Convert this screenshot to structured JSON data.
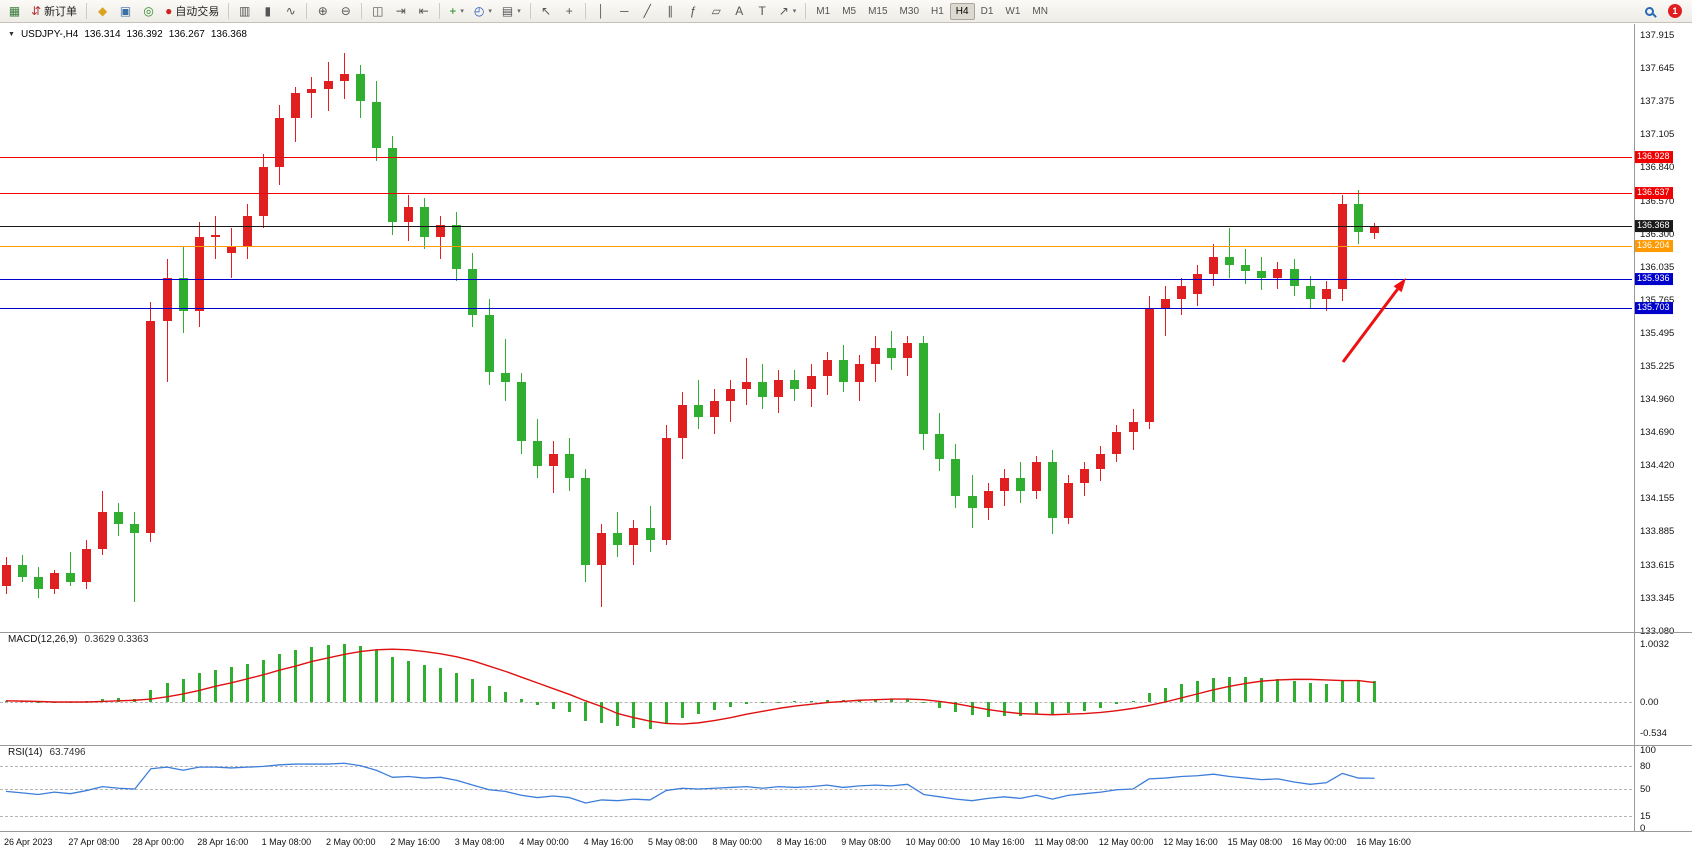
{
  "toolbar": {
    "groups": [
      [
        {
          "name": "new-chart",
          "glyph": "▦",
          "color": "#3a7a3a"
        },
        {
          "name": "new-order",
          "glyph": "⇵",
          "color": "#b03030",
          "label": "新订单"
        }
      ],
      [
        {
          "name": "metaeditor",
          "glyph": "◆",
          "color": "#d9a520"
        },
        {
          "name": "terminal",
          "glyph": "▣",
          "color": "#3a6ea5"
        },
        {
          "name": "strategy-tester",
          "glyph": "◎",
          "color": "#2e8b2e"
        },
        {
          "name": "auto-trading",
          "glyph": "●",
          "color": "#cc2222",
          "label": "自动交易"
        }
      ],
      [
        {
          "name": "bar-chart",
          "glyph": "▥"
        },
        {
          "name": "candlestick-chart",
          "glyph": "▮"
        },
        {
          "name": "line-chart",
          "glyph": "∿"
        }
      ],
      [
        {
          "name": "zoom-in",
          "glyph": "⊕"
        },
        {
          "name": "zoom-out",
          "glyph": "⊖"
        }
      ],
      [
        {
          "name": "tile-windows",
          "glyph": "◫"
        },
        {
          "name": "auto-scroll",
          "glyph": "⇥"
        },
        {
          "name": "chart-shift",
          "glyph": "⇤"
        }
      ],
      [
        {
          "name": "indicators",
          "glyph": "+",
          "color": "#1a8a1a",
          "dropdown": true
        },
        {
          "name": "periods",
          "glyph": "◴",
          "color": "#2255bb",
          "dropdown": true
        },
        {
          "name": "templates",
          "glyph": "▤",
          "dropdown": true
        }
      ],
      [
        {
          "name": "cursor",
          "glyph": "↖"
        },
        {
          "name": "crosshair",
          "glyph": "+"
        }
      ],
      [
        {
          "name": "vertical-line",
          "glyph": "│"
        },
        {
          "name": "horizontal-line",
          "glyph": "─"
        },
        {
          "name": "trendline",
          "glyph": "╱"
        },
        {
          "name": "equidistant-channel",
          "glyph": "∥"
        },
        {
          "name": "fibonacci",
          "glyph": "ƒ"
        },
        {
          "name": "shapes",
          "glyph": "▱"
        },
        {
          "name": "text",
          "glyph": "A"
        },
        {
          "name": "text-label",
          "glyph": "T"
        },
        {
          "name": "arrows",
          "glyph": "↗",
          "dropdown": true
        }
      ]
    ],
    "timeframes": {
      "options": [
        "M1",
        "M5",
        "M15",
        "M30",
        "H1",
        "H4",
        "D1",
        "W1",
        "MN"
      ],
      "active": "H4"
    },
    "right": {
      "badge_count": "1"
    }
  },
  "chart": {
    "collapse_icon": "▼",
    "symbol_period": "USDJPY-,H4",
    "ohlc": {
      "open": "136.314",
      "high": "136.392",
      "low": "136.267",
      "close": "136.368"
    }
  },
  "macd_panel": {
    "label": "MACD(12,26,9)",
    "values": "0.3629 0.3363",
    "scale_labels": [
      "1.0032",
      "0.00",
      "-0.534"
    ]
  },
  "rsi_panel": {
    "label": "RSI(14)",
    "value": "63.7496",
    "scale_labels": [
      "100",
      "80",
      "50",
      "15",
      "0"
    ]
  },
  "chart_data": {
    "type": "candlestick",
    "symbol": "USDJPY-",
    "timeframe": "H4",
    "up_color": "#e02020",
    "down_color": "#2fae2f",
    "price_axis_labels": [
      "137.915",
      "137.645",
      "137.375",
      "137.105",
      "136.840",
      "136.570",
      "136.300",
      "136.035",
      "135.765",
      "135.495",
      "135.225",
      "134.960",
      "134.690",
      "134.420",
      "134.155",
      "133.885",
      "133.615",
      "133.345",
      "133.080"
    ],
    "time_axis_labels": [
      "26 Apr 2023",
      "27 Apr 08:00",
      "28 Apr 00:00",
      "28 Apr 16:00",
      "1 May 08:00",
      "2 May 00:00",
      "2 May 16:00",
      "3 May 08:00",
      "4 May 00:00",
      "4 May 16:00",
      "5 May 08:00",
      "8 May 00:00",
      "8 May 16:00",
      "9 May 08:00",
      "10 May 00:00",
      "10 May 16:00",
      "11 May 08:00",
      "12 May 00:00",
      "12 May 16:00",
      "15 May 08:00",
      "16 May 00:00",
      "16 May 16:00"
    ],
    "candles_ohlc": [
      [
        133.45,
        133.68,
        133.38,
        133.62
      ],
      [
        133.62,
        133.7,
        133.48,
        133.52
      ],
      [
        133.52,
        133.6,
        133.35,
        133.42
      ],
      [
        133.42,
        133.58,
        133.38,
        133.55
      ],
      [
        133.55,
        133.72,
        133.45,
        133.48
      ],
      [
        133.48,
        133.82,
        133.42,
        133.75
      ],
      [
        133.75,
        134.22,
        133.7,
        134.05
      ],
      [
        134.05,
        134.12,
        133.85,
        133.95
      ],
      [
        133.95,
        134.05,
        133.32,
        133.88
      ],
      [
        133.88,
        135.75,
        133.8,
        135.6
      ],
      [
        135.6,
        136.1,
        135.1,
        135.95
      ],
      [
        135.95,
        136.2,
        135.5,
        135.68
      ],
      [
        135.68,
        136.4,
        135.55,
        136.28
      ],
      [
        136.28,
        136.45,
        136.1,
        136.3
      ],
      [
        136.15,
        136.35,
        135.95,
        136.2
      ],
      [
        136.2,
        136.55,
        136.1,
        136.45
      ],
      [
        136.45,
        136.95,
        136.35,
        136.85
      ],
      [
        136.85,
        137.35,
        136.7,
        137.25
      ],
      [
        137.25,
        137.5,
        137.05,
        137.45
      ],
      [
        137.45,
        137.58,
        137.25,
        137.48
      ],
      [
        137.48,
        137.7,
        137.3,
        137.55
      ],
      [
        137.55,
        137.77,
        137.4,
        137.6
      ],
      [
        137.6,
        137.68,
        137.25,
        137.38
      ],
      [
        137.38,
        137.55,
        136.9,
        137.0
      ],
      [
        137.0,
        137.1,
        136.3,
        136.4
      ],
      [
        136.4,
        136.62,
        136.25,
        136.52
      ],
      [
        136.52,
        136.6,
        136.18,
        136.28
      ],
      [
        136.28,
        136.45,
        136.1,
        136.38
      ],
      [
        136.38,
        136.48,
        135.92,
        136.02
      ],
      [
        136.02,
        136.15,
        135.55,
        135.65
      ],
      [
        135.65,
        135.78,
        135.08,
        135.18
      ],
      [
        135.18,
        135.45,
        134.95,
        135.1
      ],
      [
        135.1,
        135.18,
        134.52,
        134.62
      ],
      [
        134.62,
        134.8,
        134.32,
        134.42
      ],
      [
        134.42,
        134.62,
        134.2,
        134.52
      ],
      [
        134.52,
        134.65,
        134.22,
        134.32
      ],
      [
        134.32,
        134.4,
        133.48,
        133.62
      ],
      [
        133.62,
        133.95,
        133.28,
        133.88
      ],
      [
        133.88,
        134.05,
        133.68,
        133.78
      ],
      [
        133.78,
        133.98,
        133.62,
        133.92
      ],
      [
        133.92,
        134.1,
        133.72,
        133.82
      ],
      [
        133.82,
        134.75,
        133.78,
        134.65
      ],
      [
        134.65,
        135.02,
        134.48,
        134.92
      ],
      [
        134.92,
        135.12,
        134.72,
        134.82
      ],
      [
        134.82,
        135.05,
        134.68,
        134.95
      ],
      [
        134.95,
        135.12,
        134.78,
        135.05
      ],
      [
        135.05,
        135.3,
        134.92,
        135.1
      ],
      [
        135.1,
        135.25,
        134.88,
        134.98
      ],
      [
        134.98,
        135.2,
        134.85,
        135.12
      ],
      [
        135.12,
        135.2,
        134.95,
        135.05
      ],
      [
        135.05,
        135.25,
        134.9,
        135.15
      ],
      [
        135.15,
        135.35,
        135.0,
        135.28
      ],
      [
        135.28,
        135.4,
        135.02,
        135.1
      ],
      [
        135.1,
        135.32,
        134.95,
        135.25
      ],
      [
        135.25,
        135.48,
        135.1,
        135.38
      ],
      [
        135.38,
        135.52,
        135.2,
        135.3
      ],
      [
        135.3,
        135.48,
        135.15,
        135.42
      ],
      [
        135.42,
        135.48,
        134.55,
        134.68
      ],
      [
        134.68,
        134.85,
        134.38,
        134.48
      ],
      [
        134.48,
        134.6,
        134.08,
        134.18
      ],
      [
        134.18,
        134.35,
        133.92,
        134.08
      ],
      [
        134.08,
        134.28,
        133.98,
        134.22
      ],
      [
        134.22,
        134.4,
        134.1,
        134.32
      ],
      [
        134.32,
        134.45,
        134.12,
        134.22
      ],
      [
        134.22,
        134.5,
        134.15,
        134.45
      ],
      [
        134.45,
        134.55,
        133.87,
        134.0
      ],
      [
        134.0,
        134.35,
        133.95,
        134.28
      ],
      [
        134.28,
        134.45,
        134.18,
        134.4
      ],
      [
        134.4,
        134.58,
        134.3,
        134.52
      ],
      [
        134.52,
        134.75,
        134.45,
        134.7
      ],
      [
        134.7,
        134.88,
        134.55,
        134.78
      ],
      [
        134.78,
        135.8,
        134.72,
        135.7
      ],
      [
        135.7,
        135.88,
        135.48,
        135.78
      ],
      [
        135.78,
        135.95,
        135.65,
        135.88
      ],
      [
        135.82,
        136.05,
        135.72,
        135.98
      ],
      [
        135.98,
        136.22,
        135.88,
        136.12
      ],
      [
        136.12,
        136.35,
        135.95,
        136.05
      ],
      [
        136.05,
        136.18,
        135.9,
        136.0
      ],
      [
        136.0,
        136.12,
        135.85,
        135.95
      ],
      [
        135.95,
        136.08,
        135.86,
        136.02
      ],
      [
        136.02,
        136.1,
        135.8,
        135.88
      ],
      [
        135.88,
        135.96,
        135.7,
        135.78
      ],
      [
        135.78,
        135.92,
        135.68,
        135.86
      ],
      [
        135.86,
        136.62,
        135.76,
        136.55
      ],
      [
        136.55,
        136.66,
        136.22,
        136.32
      ],
      [
        136.314,
        136.392,
        136.267,
        136.368
      ]
    ],
    "horizontal_lines": [
      {
        "price": "136.928",
        "value": 136.928,
        "color": "#f00000"
      },
      {
        "price": "136.637",
        "value": 136.637,
        "color": "#f00000"
      },
      {
        "price": "136.368",
        "value": 136.368,
        "color": "#1a1a1a"
      },
      {
        "price": "136.204",
        "value": 136.204,
        "color": "#ff9900"
      },
      {
        "price": "135.936",
        "value": 135.936,
        "color": "#0000cc"
      },
      {
        "price": "135.703",
        "value": 135.703,
        "color": "#0000cc"
      }
    ],
    "annotation_arrow": {
      "color": "#ee1111",
      "from_xy": [
        1343,
        362
      ],
      "to_xy": [
        1406,
        278
      ]
    },
    "macd": {
      "histogram_color": "#2fae2f",
      "signal_color": "#e01010",
      "histogram": [
        0.02,
        0.01,
        -0.01,
        -0.02,
        -0.01,
        0.01,
        0.05,
        0.07,
        0.05,
        0.2,
        0.33,
        0.4,
        0.5,
        0.56,
        0.6,
        0.65,
        0.72,
        0.82,
        0.9,
        0.95,
        0.98,
        1.0,
        0.97,
        0.9,
        0.78,
        0.7,
        0.63,
        0.58,
        0.5,
        0.4,
        0.28,
        0.18,
        0.05,
        -0.06,
        -0.12,
        -0.18,
        -0.32,
        -0.36,
        -0.42,
        -0.45,
        -0.47,
        -0.38,
        -0.28,
        -0.21,
        -0.13,
        -0.08,
        -0.04,
        -0.02,
        0.0,
        0.01,
        0.02,
        0.04,
        0.03,
        0.04,
        0.05,
        0.05,
        0.06,
        -0.02,
        -0.1,
        -0.17,
        -0.23,
        -0.25,
        -0.24,
        -0.24,
        -0.21,
        -0.22,
        -0.19,
        -0.15,
        -0.1,
        -0.04,
        0.02,
        0.15,
        0.24,
        0.31,
        0.36,
        0.41,
        0.43,
        0.43,
        0.41,
        0.4,
        0.37,
        0.33,
        0.31,
        0.38,
        0.38,
        0.363
      ],
      "signal": [
        0.02,
        0.015,
        0.01,
        0.0,
        0.0,
        0.0,
        0.01,
        0.02,
        0.03,
        0.05,
        0.09,
        0.14,
        0.2,
        0.27,
        0.33,
        0.4,
        0.47,
        0.55,
        0.62,
        0.7,
        0.76,
        0.82,
        0.87,
        0.9,
        0.91,
        0.9,
        0.87,
        0.83,
        0.78,
        0.71,
        0.62,
        0.53,
        0.43,
        0.33,
        0.23,
        0.13,
        0.02,
        -0.08,
        -0.2,
        -0.27,
        -0.33,
        -0.37,
        -0.38,
        -0.36,
        -0.32,
        -0.27,
        -0.21,
        -0.16,
        -0.11,
        -0.07,
        -0.04,
        -0.01,
        0.01,
        0.03,
        0.04,
        0.05,
        0.05,
        0.04,
        0.01,
        -0.03,
        -0.08,
        -0.13,
        -0.17,
        -0.2,
        -0.21,
        -0.22,
        -0.21,
        -0.2,
        -0.18,
        -0.15,
        -0.11,
        -0.06,
        0.0,
        0.07,
        0.14,
        0.21,
        0.27,
        0.32,
        0.36,
        0.38,
        0.39,
        0.39,
        0.38,
        0.37,
        0.37,
        0.336
      ]
    },
    "rsi": {
      "color": "#3d7edb",
      "levels": [
        80,
        50,
        15
      ],
      "values": [
        47,
        45,
        43,
        46,
        44,
        48,
        53,
        51,
        50,
        76,
        78,
        74,
        78,
        78,
        77,
        78,
        79,
        81,
        82,
        82,
        82,
        83,
        80,
        74,
        65,
        66,
        64,
        65,
        61,
        55,
        49,
        47,
        42,
        39,
        41,
        39,
        32,
        36,
        35,
        37,
        36,
        48,
        51,
        50,
        51,
        52,
        53,
        51,
        53,
        52,
        53,
        55,
        52,
        54,
        55,
        54,
        56,
        43,
        40,
        37,
        35,
        38,
        40,
        38,
        42,
        37,
        42,
        44,
        46,
        49,
        50,
        63,
        64,
        66,
        67,
        69,
        66,
        64,
        62,
        63,
        59,
        56,
        58,
        70,
        64,
        63.75
      ]
    }
  }
}
